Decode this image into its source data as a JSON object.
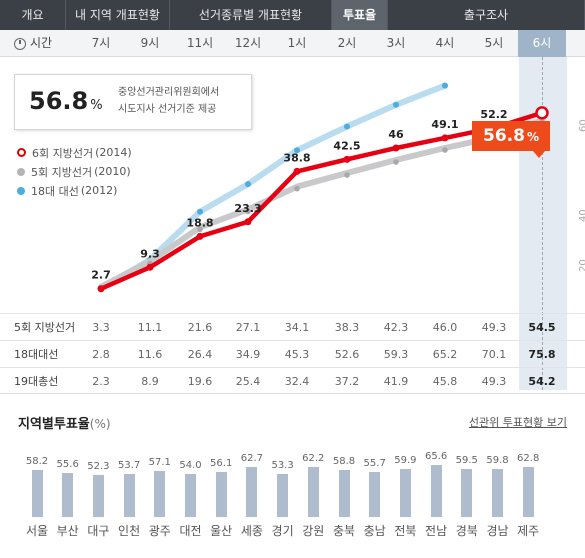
{
  "tabs": [
    {
      "label": "개요",
      "active": false
    },
    {
      "label": "내 지역 개표현황",
      "active": false
    },
    {
      "label": "선거종류별 개표현황",
      "active": false
    },
    {
      "label": "투표율",
      "active": true
    },
    {
      "label": "출구조사",
      "active": false
    }
  ],
  "timebar": {
    "heading": "시간",
    "hours": [
      "7시",
      "9시",
      "11시",
      "12시",
      "1시",
      "2시",
      "3시",
      "4시",
      "5시",
      "6시"
    ],
    "active_hour": "6시"
  },
  "info": {
    "value": "56.8",
    "unit": "%",
    "desc_line1": "중앙선거관리위원회에서",
    "desc_line2": "시도지사 선거기준 제공"
  },
  "callout": {
    "value": "56.8",
    "unit": "%"
  },
  "legend": [
    {
      "label": "6회 지방선거",
      "year": "(2014)",
      "color": "#e10000"
    },
    {
      "label": "5회 지방선거",
      "year": "(2010)",
      "color": "#b4b4b4"
    },
    {
      "label": "18대 대선",
      "year": "(2012)",
      "color": "#4aaee0"
    }
  ],
  "right_axis_ticks": [
    "60",
    "40",
    "20"
  ],
  "chart_data": {
    "type": "line",
    "x": [
      "7시",
      "9시",
      "11시",
      "12시",
      "1시",
      "2시",
      "3시",
      "4시",
      "5시",
      "6시"
    ],
    "ylim": [
      0,
      80
    ],
    "series": [
      {
        "name": "6회 지방선거(2014)",
        "color": "#e10000",
        "values": [
          2.7,
          9.3,
          18.8,
          23.3,
          38.8,
          42.5,
          46.0,
          49.1,
          52.2,
          56.8
        ],
        "labels": [
          "2.7",
          "9.3",
          "18.8",
          "23.3",
          "38.8",
          "42.5",
          "46",
          "49.1",
          "52.2",
          ""
        ]
      },
      {
        "name": "5회 지방선거(2010)",
        "color": "#b4b4b4",
        "values": [
          3.3,
          11.1,
          21.6,
          27.1,
          34.1,
          38.3,
          42.3,
          46.0,
          49.3,
          54.5
        ]
      },
      {
        "name": "18대 대선(2012)",
        "color": "#4aaee0",
        "values": [
          2.8,
          11.6,
          26.4,
          34.9,
          45.3,
          52.6,
          59.3,
          65.2,
          70.1,
          75.8
        ]
      }
    ]
  },
  "table": {
    "rows": [
      {
        "label": "5회 지방선거",
        "values": [
          "3.3",
          "11.1",
          "21.6",
          "27.1",
          "34.1",
          "38.3",
          "42.3",
          "46.0",
          "49.3",
          "54.5"
        ]
      },
      {
        "label": "18대대선",
        "values": [
          "2.8",
          "11.6",
          "26.4",
          "34.9",
          "45.3",
          "52.6",
          "59.3",
          "65.2",
          "70.1",
          "75.8"
        ]
      },
      {
        "label": "19대총선",
        "values": [
          "2.3",
          "8.9",
          "19.6",
          "25.4",
          "32.4",
          "37.2",
          "41.9",
          "45.8",
          "49.3",
          "54.2"
        ]
      }
    ]
  },
  "regional": {
    "title": "지역별투표율",
    "title_unit": "(%)",
    "link": "선관위 투표현황 보기",
    "bar_color": "#aebccd",
    "regions": [
      {
        "name": "서울",
        "value": "58.2"
      },
      {
        "name": "부산",
        "value": "55.6"
      },
      {
        "name": "대구",
        "value": "52.3"
      },
      {
        "name": "인천",
        "value": "53.7"
      },
      {
        "name": "광주",
        "value": "57.1"
      },
      {
        "name": "대전",
        "value": "54.0"
      },
      {
        "name": "울산",
        "value": "56.1"
      },
      {
        "name": "세종",
        "value": "62.7"
      },
      {
        "name": "경기",
        "value": "53.3"
      },
      {
        "name": "강원",
        "value": "62.2"
      },
      {
        "name": "충북",
        "value": "58.8"
      },
      {
        "name": "충남",
        "value": "55.7"
      },
      {
        "name": "전북",
        "value": "59.9"
      },
      {
        "name": "전남",
        "value": "65.6"
      },
      {
        "name": "경북",
        "value": "59.5"
      },
      {
        "name": "경남",
        "value": "59.8"
      },
      {
        "name": "제주",
        "value": "62.8"
      }
    ]
  }
}
